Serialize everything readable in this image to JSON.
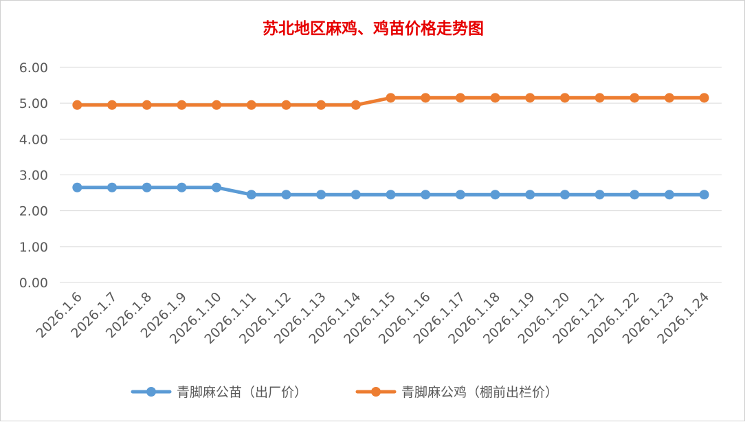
{
  "chart_data": {
    "type": "line",
    "title": "苏北地区麻鸡、鸡苗价格走势图",
    "x": [
      "2026.1.6",
      "2026.1.7",
      "2026.1.8",
      "2026.1.9",
      "2026.1.10",
      "2026.1.11",
      "2026.1.12",
      "2026.1.13",
      "2026.1.14",
      "2026.1.15",
      "2026.1.16",
      "2026.1.17",
      "2026.1.18",
      "2026.1.19",
      "2026.1.20",
      "2026.1.21",
      "2026.1.22",
      "2026.1.23",
      "2026.1.24"
    ],
    "yticks": [
      "0.00",
      "1.00",
      "2.00",
      "3.00",
      "4.00",
      "5.00",
      "6.00"
    ],
    "ylim": [
      0,
      6
    ],
    "grid": true,
    "legend": "bottom",
    "series": [
      {
        "name": "青脚麻公苗（出厂价）",
        "color": "#5b9bd5",
        "values": [
          2.65,
          2.65,
          2.65,
          2.65,
          2.65,
          2.45,
          2.45,
          2.45,
          2.45,
          2.45,
          2.45,
          2.45,
          2.45,
          2.45,
          2.45,
          2.45,
          2.45,
          2.45,
          2.45
        ]
      },
      {
        "name": "青脚麻公鸡（棚前出栏价）",
        "color": "#ed7d31",
        "values": [
          4.95,
          4.95,
          4.95,
          4.95,
          4.95,
          4.95,
          4.95,
          4.95,
          4.95,
          5.15,
          5.15,
          5.15,
          5.15,
          5.15,
          5.15,
          5.15,
          5.15,
          5.15,
          5.15
        ]
      }
    ]
  }
}
